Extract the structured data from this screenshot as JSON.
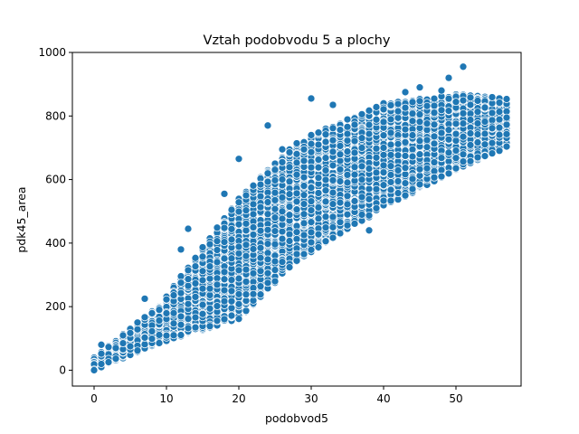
{
  "chart_data": {
    "type": "scatter",
    "title": "Vztah podobvodu 5 a plochy",
    "xlabel": "podobvod5",
    "ylabel": "pdk45_area",
    "xlim": [
      -3,
      59
    ],
    "ylim": [
      -50,
      1000
    ],
    "xticks": [
      0,
      10,
      20,
      30,
      40,
      50
    ],
    "xtick_labels": [
      "0",
      "10",
      "20",
      "30",
      "40",
      "50"
    ],
    "yticks": [
      0,
      200,
      400,
      600,
      800,
      1000
    ],
    "ytick_labels": [
      "0",
      "200",
      "400",
      "600",
      "800",
      "1000"
    ],
    "grid": false,
    "legend": "none",
    "point_color": "#1f77b4",
    "point_edge_color": "#ffffff",
    "bands": [
      {
        "x": [
          0,
          9
        ],
        "y_low": [
          0,
          85
        ],
        "y_high": [
          40,
          205
        ]
      },
      {
        "x": [
          9,
          20
        ],
        "y_low": [
          85,
          160
        ],
        "y_high": [
          205,
          540
        ]
      },
      {
        "x": [
          20,
          28
        ],
        "y_low": [
          160,
          340
        ],
        "y_high": [
          540,
          720
        ]
      },
      {
        "x": [
          28,
          40
        ],
        "y_low": [
          340,
          510
        ],
        "y_high": [
          720,
          840
        ]
      },
      {
        "x": [
          40,
          50
        ],
        "y_low": [
          510,
          630
        ],
        "y_high": [
          840,
          870
        ]
      },
      {
        "x": [
          50,
          57
        ],
        "y_low": [
          630,
          700
        ],
        "y_high": [
          870,
          855
        ]
      }
    ],
    "outliers": [
      [
        20,
        665
      ],
      [
        30,
        855
      ],
      [
        51,
        955
      ],
      [
        49,
        920
      ],
      [
        45,
        890
      ],
      [
        38,
        440
      ],
      [
        24,
        770
      ],
      [
        33,
        835
      ],
      [
        12,
        380
      ],
      [
        13,
        445
      ],
      [
        26,
        695
      ],
      [
        7,
        225
      ],
      [
        48,
        880
      ],
      [
        57,
        795
      ],
      [
        18,
        555
      ],
      [
        0,
        0
      ],
      [
        1,
        80
      ],
      [
        43,
        875
      ]
    ],
    "samples_per_band": 1100
  }
}
